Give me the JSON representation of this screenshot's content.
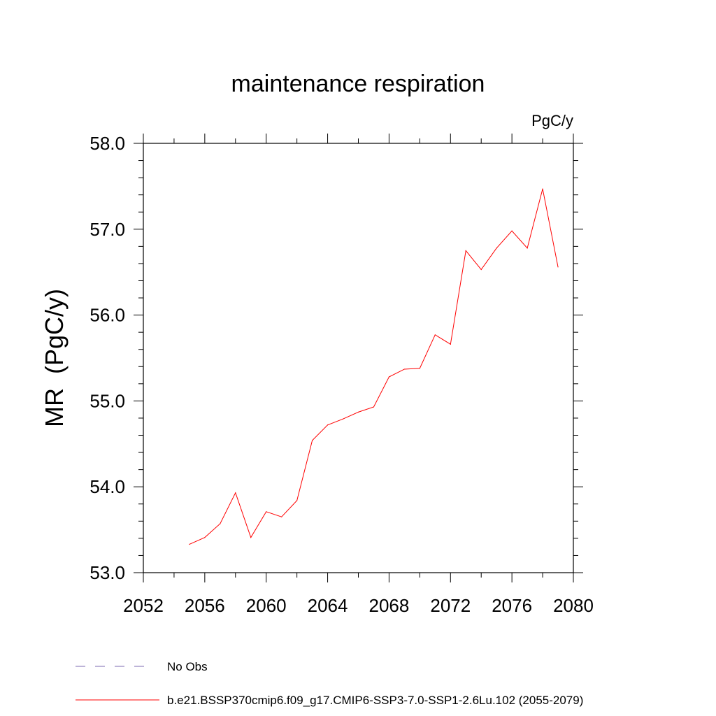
{
  "chart_data": {
    "type": "line",
    "title": "maintenance respiration",
    "units_label": "PgC/y",
    "ylabel": "MR  (PgC/y)",
    "xlabel": "",
    "xlim": [
      2052,
      2080
    ],
    "ylim": [
      53.0,
      58.0
    ],
    "x_ticks": [
      2052,
      2056,
      2060,
      2064,
      2068,
      2072,
      2076,
      2080
    ],
    "x_tick_labels": [
      "2052",
      "2056",
      "2060",
      "2064",
      "2068",
      "2072",
      "2076",
      "2080"
    ],
    "y_ticks": [
      53.0,
      54.0,
      55.0,
      56.0,
      57.0,
      58.0
    ],
    "y_tick_labels": [
      "53.0",
      "54.0",
      "55.0",
      "56.0",
      "57.0",
      "58.0"
    ],
    "grid": false,
    "legend_placement": "bottom",
    "series": [
      {
        "name": "b.e21.BSSP370cmip6.f09_g17.CMIP6-SSP3-7.0-SSP1-2.6Lu.102 (2055-2079)",
        "color": "#ff0000",
        "x": [
          2055,
          2056,
          2057,
          2058,
          2059,
          2060,
          2061,
          2062,
          2063,
          2064,
          2065,
          2066,
          2067,
          2068,
          2069,
          2070,
          2071,
          2072,
          2073,
          2074,
          2075,
          2076,
          2077,
          2078,
          2079
        ],
        "values": [
          53.33,
          53.41,
          53.57,
          53.93,
          53.41,
          53.71,
          53.65,
          53.84,
          54.54,
          54.72,
          54.79,
          54.87,
          54.93,
          55.28,
          55.37,
          55.38,
          55.77,
          55.66,
          56.75,
          56.53,
          56.78,
          56.98,
          56.78,
          57.47,
          56.56
        ]
      }
    ],
    "legend": [
      {
        "label": "No Obs",
        "color": "#7b68b0",
        "style": "dashed"
      },
      {
        "label": "b.e21.BSSP370cmip6.f09_g17.CMIP6-SSP3-7.0-SSP1-2.6Lu.102 (2055-2079)",
        "color": "#ff0000",
        "style": "solid"
      }
    ]
  }
}
